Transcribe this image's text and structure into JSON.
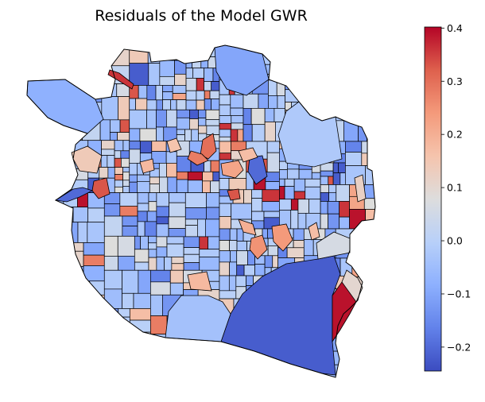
{
  "chart_data": {
    "type": "choropleth_map",
    "title": "Residuals of the Model GWR",
    "colormap": "coolwarm",
    "colorbar": {
      "vmin": -0.245,
      "vmax": 0.402,
      "ticks": [
        {
          "value": 0.4,
          "label": "0.4"
        },
        {
          "value": 0.3,
          "label": "0.3"
        },
        {
          "value": 0.2,
          "label": "0.2"
        },
        {
          "value": 0.1,
          "label": "0.1"
        },
        {
          "value": 0.0,
          "label": "0.0"
        },
        {
          "value": -0.1,
          "label": "−0.1"
        },
        {
          "value": -0.2,
          "label": "−0.2"
        }
      ]
    },
    "residual_sample_values": [
      0.39,
      0.36,
      0.33,
      0.28,
      0.22,
      0.17,
      0.14,
      0.11,
      0.08,
      0.06,
      0.04,
      0.02,
      0.0,
      -0.01,
      -0.02,
      -0.03,
      -0.04,
      -0.05,
      -0.06,
      -0.08,
      -0.1,
      -0.13,
      -0.16,
      -0.22
    ]
  }
}
